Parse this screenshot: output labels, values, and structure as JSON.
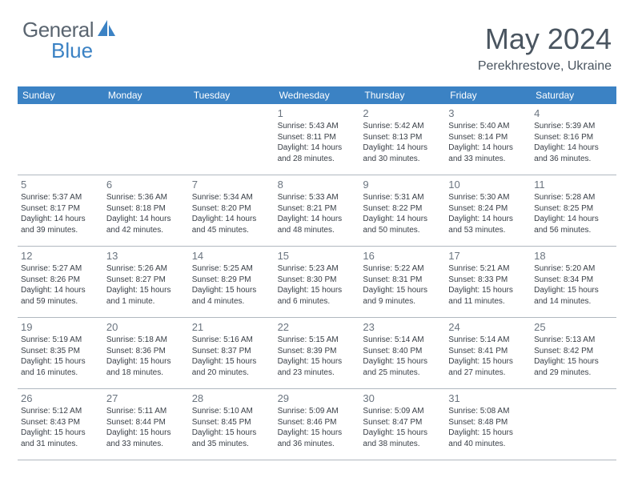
{
  "logo": {
    "text1": "General",
    "text2": "Blue",
    "text1_color": "#5a6570",
    "text2_color": "#3b82c4",
    "icon_color": "#3b82c4"
  },
  "header": {
    "month": "May 2024",
    "location": "Perekhrestove, Ukraine"
  },
  "styling": {
    "header_bg": "#3b82c4",
    "header_text": "#ffffff",
    "daynum_color": "#6b7580",
    "info_color": "#3a4048",
    "border_color": "#b0b8c0"
  },
  "dayNames": [
    "Sunday",
    "Monday",
    "Tuesday",
    "Wednesday",
    "Thursday",
    "Friday",
    "Saturday"
  ],
  "weeks": [
    [
      {
        "num": "",
        "sunrise": "",
        "sunset": "",
        "daylight": ""
      },
      {
        "num": "",
        "sunrise": "",
        "sunset": "",
        "daylight": ""
      },
      {
        "num": "",
        "sunrise": "",
        "sunset": "",
        "daylight": ""
      },
      {
        "num": "1",
        "sunrise": "Sunrise: 5:43 AM",
        "sunset": "Sunset: 8:11 PM",
        "daylight": "Daylight: 14 hours and 28 minutes."
      },
      {
        "num": "2",
        "sunrise": "Sunrise: 5:42 AM",
        "sunset": "Sunset: 8:13 PM",
        "daylight": "Daylight: 14 hours and 30 minutes."
      },
      {
        "num": "3",
        "sunrise": "Sunrise: 5:40 AM",
        "sunset": "Sunset: 8:14 PM",
        "daylight": "Daylight: 14 hours and 33 minutes."
      },
      {
        "num": "4",
        "sunrise": "Sunrise: 5:39 AM",
        "sunset": "Sunset: 8:16 PM",
        "daylight": "Daylight: 14 hours and 36 minutes."
      }
    ],
    [
      {
        "num": "5",
        "sunrise": "Sunrise: 5:37 AM",
        "sunset": "Sunset: 8:17 PM",
        "daylight": "Daylight: 14 hours and 39 minutes."
      },
      {
        "num": "6",
        "sunrise": "Sunrise: 5:36 AM",
        "sunset": "Sunset: 8:18 PM",
        "daylight": "Daylight: 14 hours and 42 minutes."
      },
      {
        "num": "7",
        "sunrise": "Sunrise: 5:34 AM",
        "sunset": "Sunset: 8:20 PM",
        "daylight": "Daylight: 14 hours and 45 minutes."
      },
      {
        "num": "8",
        "sunrise": "Sunrise: 5:33 AM",
        "sunset": "Sunset: 8:21 PM",
        "daylight": "Daylight: 14 hours and 48 minutes."
      },
      {
        "num": "9",
        "sunrise": "Sunrise: 5:31 AM",
        "sunset": "Sunset: 8:22 PM",
        "daylight": "Daylight: 14 hours and 50 minutes."
      },
      {
        "num": "10",
        "sunrise": "Sunrise: 5:30 AM",
        "sunset": "Sunset: 8:24 PM",
        "daylight": "Daylight: 14 hours and 53 minutes."
      },
      {
        "num": "11",
        "sunrise": "Sunrise: 5:28 AM",
        "sunset": "Sunset: 8:25 PM",
        "daylight": "Daylight: 14 hours and 56 minutes."
      }
    ],
    [
      {
        "num": "12",
        "sunrise": "Sunrise: 5:27 AM",
        "sunset": "Sunset: 8:26 PM",
        "daylight": "Daylight: 14 hours and 59 minutes."
      },
      {
        "num": "13",
        "sunrise": "Sunrise: 5:26 AM",
        "sunset": "Sunset: 8:27 PM",
        "daylight": "Daylight: 15 hours and 1 minute."
      },
      {
        "num": "14",
        "sunrise": "Sunrise: 5:25 AM",
        "sunset": "Sunset: 8:29 PM",
        "daylight": "Daylight: 15 hours and 4 minutes."
      },
      {
        "num": "15",
        "sunrise": "Sunrise: 5:23 AM",
        "sunset": "Sunset: 8:30 PM",
        "daylight": "Daylight: 15 hours and 6 minutes."
      },
      {
        "num": "16",
        "sunrise": "Sunrise: 5:22 AM",
        "sunset": "Sunset: 8:31 PM",
        "daylight": "Daylight: 15 hours and 9 minutes."
      },
      {
        "num": "17",
        "sunrise": "Sunrise: 5:21 AM",
        "sunset": "Sunset: 8:33 PM",
        "daylight": "Daylight: 15 hours and 11 minutes."
      },
      {
        "num": "18",
        "sunrise": "Sunrise: 5:20 AM",
        "sunset": "Sunset: 8:34 PM",
        "daylight": "Daylight: 15 hours and 14 minutes."
      }
    ],
    [
      {
        "num": "19",
        "sunrise": "Sunrise: 5:19 AM",
        "sunset": "Sunset: 8:35 PM",
        "daylight": "Daylight: 15 hours and 16 minutes."
      },
      {
        "num": "20",
        "sunrise": "Sunrise: 5:18 AM",
        "sunset": "Sunset: 8:36 PM",
        "daylight": "Daylight: 15 hours and 18 minutes."
      },
      {
        "num": "21",
        "sunrise": "Sunrise: 5:16 AM",
        "sunset": "Sunset: 8:37 PM",
        "daylight": "Daylight: 15 hours and 20 minutes."
      },
      {
        "num": "22",
        "sunrise": "Sunrise: 5:15 AM",
        "sunset": "Sunset: 8:39 PM",
        "daylight": "Daylight: 15 hours and 23 minutes."
      },
      {
        "num": "23",
        "sunrise": "Sunrise: 5:14 AM",
        "sunset": "Sunset: 8:40 PM",
        "daylight": "Daylight: 15 hours and 25 minutes."
      },
      {
        "num": "24",
        "sunrise": "Sunrise: 5:14 AM",
        "sunset": "Sunset: 8:41 PM",
        "daylight": "Daylight: 15 hours and 27 minutes."
      },
      {
        "num": "25",
        "sunrise": "Sunrise: 5:13 AM",
        "sunset": "Sunset: 8:42 PM",
        "daylight": "Daylight: 15 hours and 29 minutes."
      }
    ],
    [
      {
        "num": "26",
        "sunrise": "Sunrise: 5:12 AM",
        "sunset": "Sunset: 8:43 PM",
        "daylight": "Daylight: 15 hours and 31 minutes."
      },
      {
        "num": "27",
        "sunrise": "Sunrise: 5:11 AM",
        "sunset": "Sunset: 8:44 PM",
        "daylight": "Daylight: 15 hours and 33 minutes."
      },
      {
        "num": "28",
        "sunrise": "Sunrise: 5:10 AM",
        "sunset": "Sunset: 8:45 PM",
        "daylight": "Daylight: 15 hours and 35 minutes."
      },
      {
        "num": "29",
        "sunrise": "Sunrise: 5:09 AM",
        "sunset": "Sunset: 8:46 PM",
        "daylight": "Daylight: 15 hours and 36 minutes."
      },
      {
        "num": "30",
        "sunrise": "Sunrise: 5:09 AM",
        "sunset": "Sunset: 8:47 PM",
        "daylight": "Daylight: 15 hours and 38 minutes."
      },
      {
        "num": "31",
        "sunrise": "Sunrise: 5:08 AM",
        "sunset": "Sunset: 8:48 PM",
        "daylight": "Daylight: 15 hours and 40 minutes."
      },
      {
        "num": "",
        "sunrise": "",
        "sunset": "",
        "daylight": ""
      }
    ]
  ]
}
